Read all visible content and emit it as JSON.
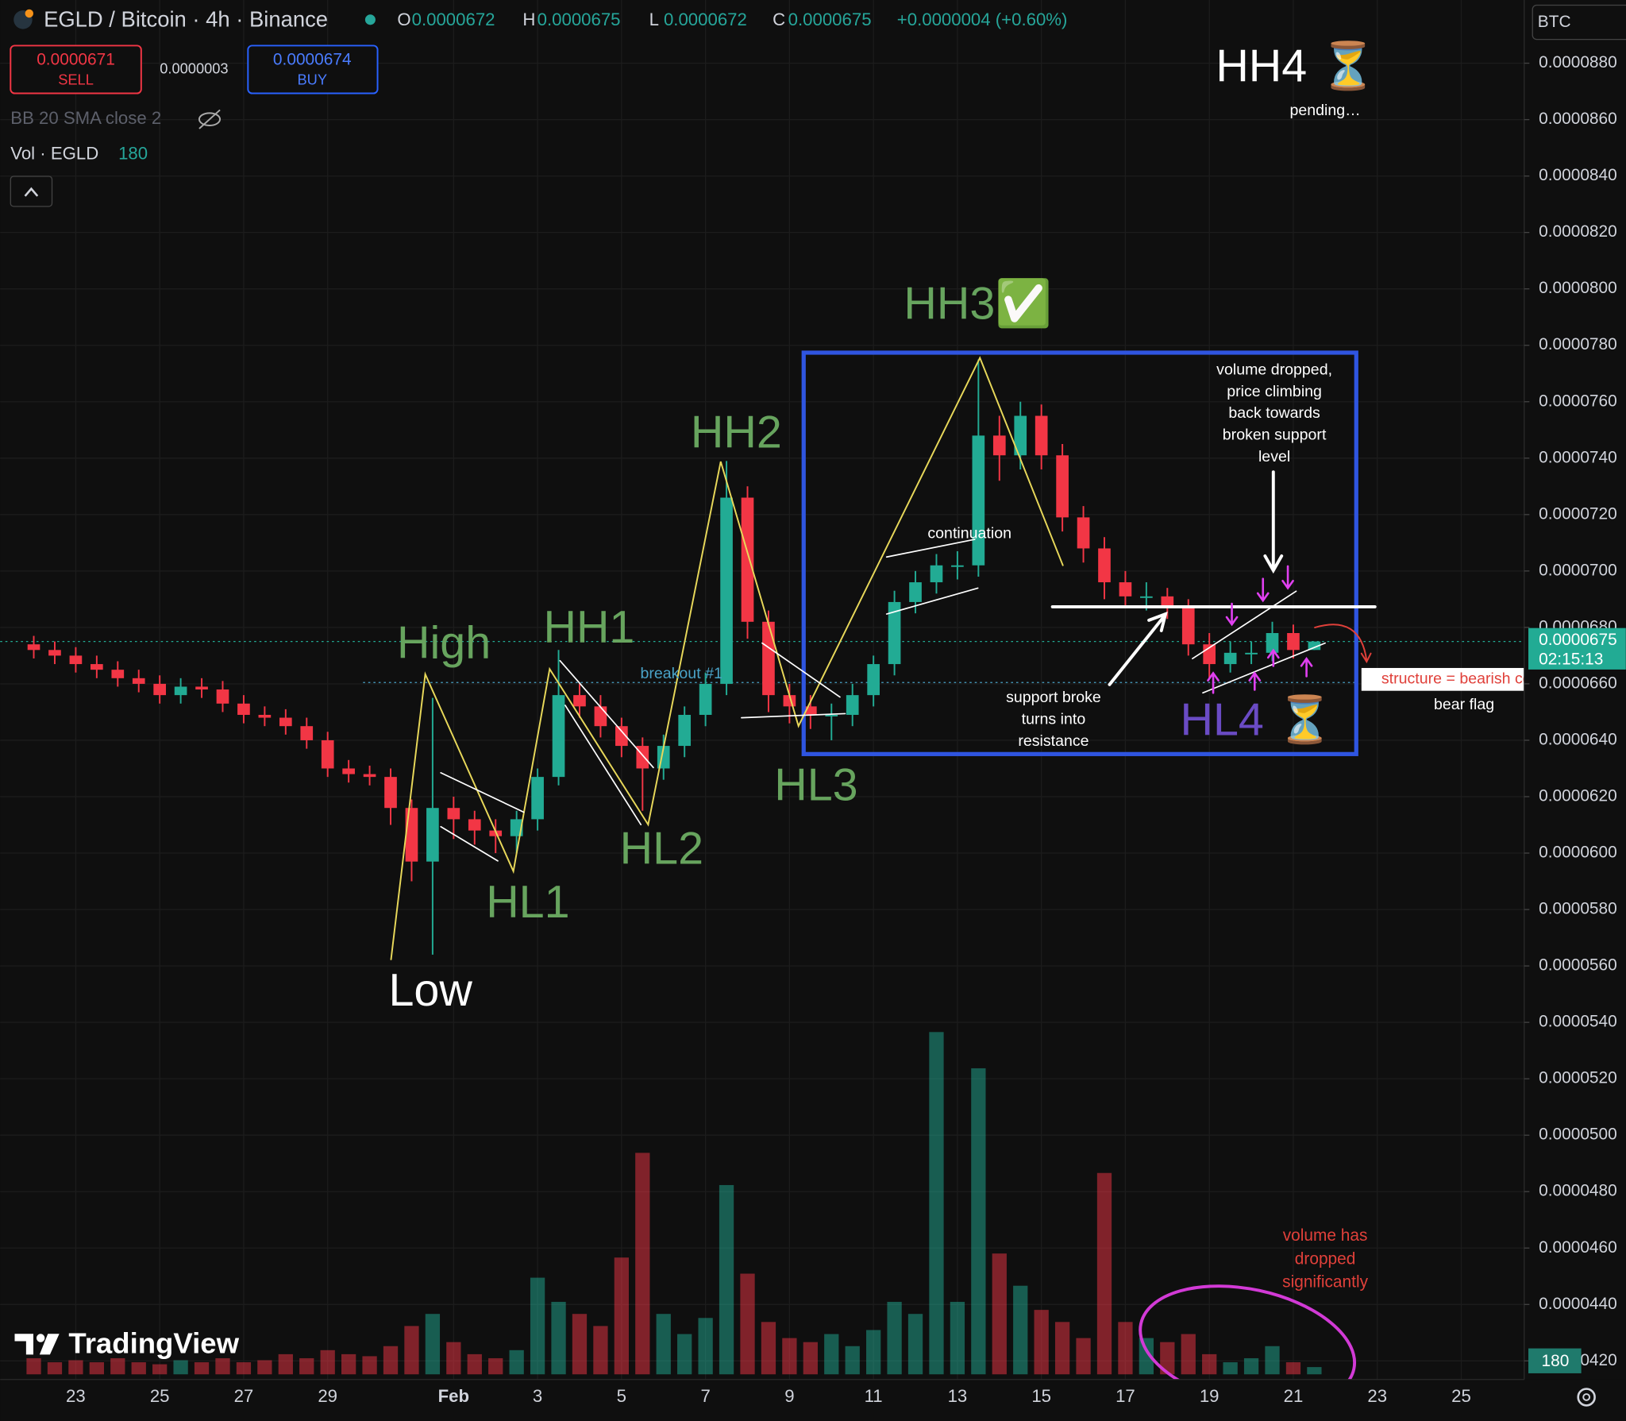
{
  "header": {
    "symbol": "EGLD / Bitcoin · 4h · Binance",
    "o_label": "O",
    "h_label": "H",
    "l_label": "L",
    "c_label": "C",
    "change": "+0.0000004 (+0.60%)",
    "sell_price": "0.0000671",
    "sell": "SELL",
    "spread": "0.0000003",
    "buy_price": "0.0000674",
    "buy": "BUY",
    "indicator": "BB 20 SMA close 2",
    "volume_label": "Vol · EGLD",
    "currency": "BTC",
    "countdown": "02:15:13",
    "brand": "TradingView"
  },
  "annotations": [
    [
      "HH4 ⏳"
    ],
    [
      "pending…"
    ],
    [
      "HH3✅"
    ],
    [
      "HH2"
    ],
    [
      "HH1"
    ],
    [
      "High"
    ],
    [
      "breakout #1"
    ],
    [
      "Low"
    ],
    [
      "HL1"
    ],
    [
      "HL2"
    ],
    [
      "HL3"
    ],
    [
      "HL4 ⏳"
    ],
    [
      "continuation"
    ],
    [
      "volume dropped,",
      "price climbing",
      "back towards",
      "broken support",
      "level"
    ],
    [
      "support broke",
      "turns into",
      "resistance"
    ],
    [
      "structure = bearish  continuation"
    ],
    [
      "bear flag"
    ],
    [
      "volume has",
      "dropped",
      "significantly"
    ]
  ],
  "chart_data": {
    "type": "candlestick",
    "up_color": "#22ab94",
    "down_color": "#f23645",
    "grid": true,
    "xlim": [
      -0.8,
      35.5
    ],
    "xticks": [
      {
        "value": 1,
        "label": "23"
      },
      {
        "value": 3,
        "label": "25"
      },
      {
        "value": 5,
        "label": "27"
      },
      {
        "value": 7,
        "label": "29"
      },
      {
        "value": 10,
        "label": "Feb"
      },
      {
        "value": 12,
        "label": "3"
      },
      {
        "value": 14,
        "label": "5"
      },
      {
        "value": 16,
        "label": "7"
      },
      {
        "value": 18,
        "label": "9"
      },
      {
        "value": 20,
        "label": "11"
      },
      {
        "value": 22,
        "label": "13"
      },
      {
        "value": 24,
        "label": "15"
      },
      {
        "value": 26,
        "label": "17"
      },
      {
        "value": 28,
        "label": "19"
      },
      {
        "value": 30,
        "label": "21"
      },
      {
        "value": 32,
        "label": "23"
      },
      {
        "value": 34,
        "label": "25"
      }
    ],
    "ylim": [
      4.134e-05,
      9.024e-05
    ],
    "yticks": [
      {
        "value": 4.2e-05,
        "label": "0.0000420"
      },
      {
        "value": 4.4e-05,
        "label": "0.0000440"
      },
      {
        "value": 4.6e-05,
        "label": "0.0000460"
      },
      {
        "value": 4.8e-05,
        "label": "0.0000480"
      },
      {
        "value": 5e-05,
        "label": "0.0000500"
      },
      {
        "value": 5.2e-05,
        "label": "0.0000520"
      },
      {
        "value": 5.4e-05,
        "label": "0.0000540"
      },
      {
        "value": 5.6e-05,
        "label": "0.0000560"
      },
      {
        "value": 5.8e-05,
        "label": "0.0000580"
      },
      {
        "value": 6e-05,
        "label": "0.0000600"
      },
      {
        "value": 6.2e-05,
        "label": "0.0000620"
      },
      {
        "value": 6.4e-05,
        "label": "0.0000640"
      },
      {
        "value": 6.6e-05,
        "label": "0.0000660"
      },
      {
        "value": 6.8e-05,
        "label": "0.0000680"
      },
      {
        "value": 7e-05,
        "label": "0.0000700"
      },
      {
        "value": 7.2e-05,
        "label": "0.0000720"
      },
      {
        "value": 7.4e-05,
        "label": "0.0000740"
      },
      {
        "value": 7.6e-05,
        "label": "0.0000760"
      },
      {
        "value": 7.8e-05,
        "label": "0.0000780"
      },
      {
        "value": 8e-05,
        "label": "0.0000800"
      },
      {
        "value": 8.2e-05,
        "label": "0.0000820"
      },
      {
        "value": 8.4e-05,
        "label": "0.0000840"
      },
      {
        "value": 8.6e-05,
        "label": "0.0000860"
      },
      {
        "value": 8.8e-05,
        "label": "0.0000880"
      }
    ],
    "x": [
      0,
      0.5,
      1,
      1.5,
      2,
      2.5,
      3,
      3.5,
      4,
      4.5,
      5,
      5.5,
      6,
      6.5,
      7,
      7.5,
      8,
      8.5,
      9,
      9.5,
      10,
      10.5,
      11,
      11.5,
      12,
      12.5,
      13,
      13.5,
      14,
      14.5,
      15,
      15.5,
      16,
      16.5,
      17,
      17.5,
      18,
      18.5,
      19,
      19.5,
      20,
      20.5,
      21,
      21.5,
      22,
      22.5,
      23,
      23.5,
      24,
      24.5,
      25,
      25.5,
      26,
      26.5,
      27,
      27.5,
      28,
      28.5,
      29,
      29.5,
      30,
      30.5
    ],
    "open": [
      6.74e-05,
      6.72e-05,
      6.7e-05,
      6.67e-05,
      6.65e-05,
      6.62e-05,
      6.6e-05,
      6.56e-05,
      6.59e-05,
      6.58e-05,
      6.53e-05,
      6.49e-05,
      6.48e-05,
      6.45e-05,
      6.4e-05,
      6.3e-05,
      6.28e-05,
      6.27e-05,
      6.16e-05,
      5.97e-05,
      6.16e-05,
      6.12e-05,
      6.08e-05,
      6.06e-05,
      6.12e-05,
      6.27e-05,
      6.56e-05,
      6.52e-05,
      6.45e-05,
      6.38e-05,
      6.3e-05,
      6.38e-05,
      6.49e-05,
      6.6e-05,
      7.26e-05,
      6.82e-05,
      6.56e-05,
      6.52e-05,
      6.49e-05,
      6.49e-05,
      6.56e-05,
      6.67e-05,
      6.89e-05,
      6.96e-05,
      7.02e-05,
      7.02e-05,
      7.48e-05,
      7.41e-05,
      7.55e-05,
      7.41e-05,
      7.19e-05,
      7.08e-05,
      6.96e-05,
      6.91e-05,
      6.91e-05,
      6.87e-05,
      6.74e-05,
      6.67e-05,
      6.71e-05,
      6.71e-05,
      6.78e-05,
      6.72e-05
    ],
    "high": [
      6.77e-05,
      6.75e-05,
      6.73e-05,
      6.7e-05,
      6.68e-05,
      6.65e-05,
      6.63e-05,
      6.62e-05,
      6.62e-05,
      6.61e-05,
      6.56e-05,
      6.52e-05,
      6.51e-05,
      6.48e-05,
      6.43e-05,
      6.33e-05,
      6.31e-05,
      6.3e-05,
      6.19e-05,
      6.55e-05,
      6.2e-05,
      6.15e-05,
      6.12e-05,
      6.15e-05,
      6.3e-05,
      6.72e-05,
      6.6e-05,
      6.56e-05,
      6.48e-05,
      6.41e-05,
      6.42e-05,
      6.52e-05,
      6.64e-05,
      7.39e-05,
      7.3e-05,
      6.86e-05,
      6.6e-05,
      6.56e-05,
      6.53e-05,
      6.6e-05,
      6.7e-05,
      6.93e-05,
      7e-05,
      7.06e-05,
      7.07e-05,
      7.75e-05,
      7.55e-05,
      7.6e-05,
      7.59e-05,
      7.45e-05,
      7.23e-05,
      7.12e-05,
      7e-05,
      6.96e-05,
      6.94e-05,
      6.9e-05,
      6.78e-05,
      6.75e-05,
      6.75e-05,
      6.82e-05,
      6.81e-05,
      6.75e-05
    ],
    "low": [
      6.69e-05,
      6.67e-05,
      6.64e-05,
      6.62e-05,
      6.59e-05,
      6.57e-05,
      6.53e-05,
      6.53e-05,
      6.55e-05,
      6.5e-05,
      6.46e-05,
      6.45e-05,
      6.42e-05,
      6.37e-05,
      6.27e-05,
      6.25e-05,
      6.24e-05,
      6.1e-05,
      5.9e-05,
      5.64e-05,
      6.05e-05,
      6.03e-05,
      6e-05,
      6e-05,
      6.08e-05,
      6.24e-05,
      6.48e-05,
      6.41e-05,
      6.34e-05,
      6.15e-05,
      6.26e-05,
      6.34e-05,
      6.45e-05,
      6.56e-05,
      6.76e-05,
      6.5e-05,
      6.46e-05,
      6.44e-05,
      6.4e-05,
      6.45e-05,
      6.52e-05,
      6.63e-05,
      6.85e-05,
      6.92e-05,
      6.97e-05,
      6.98e-05,
      7.32e-05,
      7.36e-05,
      7.36e-05,
      7.14e-05,
      7.03e-05,
      6.9e-05,
      6.87e-05,
      6.86e-05,
      6.83e-05,
      6.7e-05,
      6.62e-05,
      6.64e-05,
      6.67e-05,
      6.68e-05,
      6.69e-05,
      6.72e-05
    ],
    "close": [
      6.72e-05,
      6.7e-05,
      6.67e-05,
      6.65e-05,
      6.62e-05,
      6.6e-05,
      6.56e-05,
      6.59e-05,
      6.58e-05,
      6.53e-05,
      6.49e-05,
      6.48e-05,
      6.45e-05,
      6.4e-05,
      6.3e-05,
      6.28e-05,
      6.27e-05,
      6.16e-05,
      5.97e-05,
      6.16e-05,
      6.12e-05,
      6.08e-05,
      6.06e-05,
      6.12e-05,
      6.27e-05,
      6.56e-05,
      6.52e-05,
      6.45e-05,
      6.38e-05,
      6.3e-05,
      6.38e-05,
      6.49e-05,
      6.6e-05,
      7.26e-05,
      6.82e-05,
      6.56e-05,
      6.52e-05,
      6.49e-05,
      6.49e-05,
      6.56e-05,
      6.67e-05,
      6.89e-05,
      6.96e-05,
      7.02e-05,
      7.02e-05,
      7.48e-05,
      7.41e-05,
      7.55e-05,
      7.41e-05,
      7.19e-05,
      7.08e-05,
      6.96e-05,
      6.91e-05,
      6.91e-05,
      6.87e-05,
      6.74e-05,
      6.67e-05,
      6.71e-05,
      6.71e-05,
      6.78e-05,
      6.72e-05,
      6.75e-05
    ],
    "volume": [
      400,
      300,
      350,
      300,
      400,
      300,
      250,
      350,
      300,
      400,
      300,
      350,
      500,
      400,
      600,
      500,
      450,
      700,
      1200,
      1500,
      800,
      500,
      400,
      600,
      2400,
      1800,
      1500,
      1200,
      2900,
      5500,
      1500,
      1000,
      1400,
      4700,
      2500,
      1300,
      900,
      800,
      1000,
      700,
      1100,
      1800,
      1500,
      8500,
      1800,
      7600,
      3000,
      2200,
      1600,
      1300,
      900,
      5000,
      1300,
      900,
      800,
      1000,
      500,
      300,
      400,
      700,
      300,
      180
    ]
  }
}
